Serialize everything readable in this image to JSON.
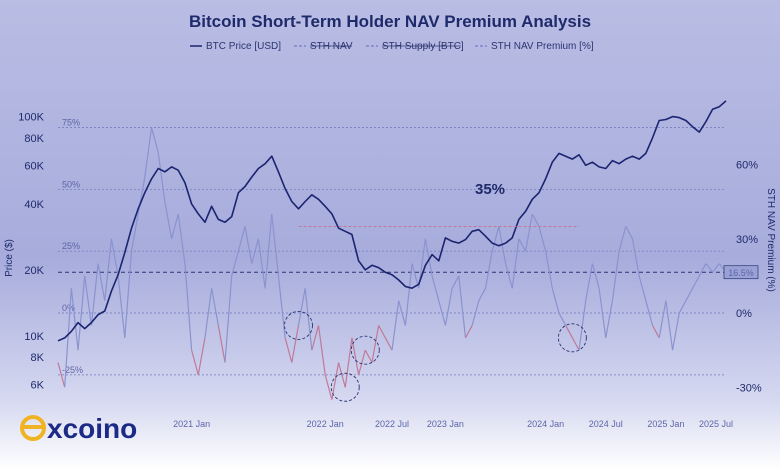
{
  "brand": {
    "name_suffix": "xcoino",
    "logo_letter": "e",
    "accent_color": "#f0b323",
    "text_color": "#1b2a86"
  },
  "chart_data": {
    "type": "line",
    "title": "Bitcoin Short-Term Holder NAV Premium Analysis",
    "legend": {
      "placement": "top-center",
      "entries": [
        "BTC Price [USD]",
        "STH NAV",
        "STH Supply [BTC]",
        "STH NAV Premium [%]"
      ]
    },
    "y_left": {
      "label": "Price ($)",
      "scale": "log",
      "range": [
        4500,
        150000
      ],
      "ticks": [
        6000,
        8000,
        10000,
        20000,
        40000,
        60000,
        80000,
        100000
      ],
      "tick_labels": [
        "6K",
        "8K",
        "10K",
        "20K",
        "40K",
        "60K",
        "80K",
        "100K"
      ]
    },
    "y_right": {
      "label": "STH NAV Premium (%)",
      "range": [
        -40,
        95
      ],
      "ticks": [
        -30,
        0,
        30,
        60
      ],
      "tick_labels": [
        "-30%",
        "0%",
        "30%",
        "60%"
      ]
    },
    "band_labels": [
      "75%",
      "50%",
      "25%",
      "0%",
      "-25%"
    ],
    "x_tick_labels": [
      "2021 Jan",
      "2022 Jan",
      "2022 Jul",
      "2023 Jan",
      "2024 Jan",
      "2024 Jul",
      "2025 Jan",
      "2025 Jul"
    ],
    "current_premium_label": "16.5%",
    "current_premium": 16.5,
    "annotation": "35%",
    "grid": false,
    "series": [
      {
        "name": "BTC Price [USD]",
        "color": "#1b2470",
        "x": [
          0.0,
          0.01,
          0.02,
          0.03,
          0.04,
          0.05,
          0.06,
          0.07,
          0.08,
          0.09,
          0.1,
          0.11,
          0.12,
          0.13,
          0.14,
          0.15,
          0.16,
          0.17,
          0.18,
          0.19,
          0.2,
          0.21,
          0.22,
          0.23,
          0.24,
          0.25,
          0.26,
          0.27,
          0.28,
          0.29,
          0.3,
          0.31,
          0.32,
          0.33,
          0.34,
          0.35,
          0.36,
          0.37,
          0.38,
          0.39,
          0.4,
          0.41,
          0.42,
          0.43,
          0.44,
          0.45,
          0.46,
          0.47,
          0.48,
          0.49,
          0.5,
          0.51,
          0.52,
          0.53,
          0.54,
          0.55,
          0.56,
          0.57,
          0.58,
          0.59,
          0.6,
          0.61,
          0.62,
          0.63,
          0.64,
          0.65,
          0.66,
          0.67,
          0.68,
          0.69,
          0.7,
          0.71,
          0.72,
          0.73,
          0.74,
          0.75,
          0.76,
          0.77,
          0.78,
          0.79,
          0.8,
          0.81,
          0.82,
          0.83,
          0.84,
          0.85,
          0.86,
          0.87,
          0.88,
          0.89,
          0.9,
          0.91,
          0.92,
          0.93,
          0.94,
          0.95,
          0.96,
          0.97,
          0.98,
          0.99,
          1.0
        ],
        "values": [
          9500,
          9800,
          10500,
          11500,
          10800,
          11500,
          12500,
          13000,
          16000,
          19000,
          24000,
          31000,
          38000,
          45000,
          52000,
          58000,
          56000,
          59000,
          57000,
          50000,
          40000,
          36000,
          33000,
          39000,
          34000,
          33000,
          35000,
          45000,
          48000,
          53000,
          58000,
          61000,
          66000,
          56000,
          47000,
          41000,
          38000,
          41000,
          44000,
          42000,
          39000,
          36000,
          31000,
          30000,
          29000,
          22000,
          20000,
          21000,
          20500,
          19500,
          19000,
          18000,
          16800,
          16500,
          17200,
          21000,
          23500,
          22000,
          28000,
          27000,
          26500,
          27500,
          30000,
          30500,
          28500,
          26500,
          25800,
          26500,
          28000,
          34000,
          37000,
          42000,
          45000,
          52000,
          62000,
          68000,
          66000,
          64000,
          67000,
          60000,
          62000,
          59000,
          58000,
          63000,
          61000,
          64000,
          66000,
          64000,
          68000,
          80000,
          96000,
          97000,
          100000,
          99000,
          96000,
          90000,
          85000,
          95000,
          108000,
          111000,
          118000
        ]
      },
      {
        "name": "STH NAV Premium [%]",
        "color": "#7d86c9",
        "x": [
          0.0,
          0.01,
          0.02,
          0.03,
          0.04,
          0.05,
          0.06,
          0.07,
          0.08,
          0.09,
          0.1,
          0.11,
          0.12,
          0.13,
          0.14,
          0.15,
          0.16,
          0.17,
          0.18,
          0.19,
          0.2,
          0.21,
          0.22,
          0.23,
          0.24,
          0.25,
          0.26,
          0.27,
          0.28,
          0.29,
          0.3,
          0.31,
          0.32,
          0.33,
          0.34,
          0.35,
          0.36,
          0.37,
          0.38,
          0.39,
          0.4,
          0.41,
          0.42,
          0.43,
          0.44,
          0.45,
          0.46,
          0.47,
          0.48,
          0.49,
          0.5,
          0.51,
          0.52,
          0.53,
          0.54,
          0.55,
          0.56,
          0.57,
          0.58,
          0.59,
          0.6,
          0.61,
          0.62,
          0.63,
          0.64,
          0.65,
          0.66,
          0.67,
          0.68,
          0.69,
          0.7,
          0.71,
          0.72,
          0.73,
          0.74,
          0.75,
          0.76,
          0.77,
          0.78,
          0.79,
          0.8,
          0.81,
          0.82,
          0.83,
          0.84,
          0.85,
          0.86,
          0.87,
          0.88,
          0.89,
          0.9,
          0.91,
          0.92,
          0.93,
          0.94,
          0.95,
          0.96,
          0.97,
          0.98,
          0.99,
          1.0
        ],
        "values": [
          -20,
          -30,
          10,
          -15,
          15,
          -5,
          20,
          5,
          30,
          15,
          -10,
          25,
          40,
          55,
          75,
          65,
          45,
          30,
          40,
          20,
          -15,
          -25,
          -10,
          10,
          -5,
          -20,
          15,
          25,
          35,
          20,
          30,
          10,
          40,
          15,
          -10,
          -20,
          -5,
          10,
          -15,
          -5,
          -25,
          -35,
          -20,
          -30,
          -10,
          -25,
          -15,
          -20,
          -5,
          -10,
          -15,
          5,
          -5,
          20,
          10,
          30,
          15,
          5,
          -5,
          10,
          15,
          -10,
          -5,
          5,
          10,
          25,
          35,
          20,
          10,
          30,
          25,
          40,
          35,
          25,
          10,
          0,
          -5,
          -10,
          -15,
          5,
          20,
          10,
          -10,
          5,
          25,
          35,
          30,
          15,
          5,
          -5,
          -10,
          5,
          -15,
          0,
          5,
          10,
          15,
          20,
          16.5,
          20,
          16.5
        ]
      }
    ],
    "highlight_peaks_x": [
      0.36,
      0.43,
      0.46,
      0.77
    ],
    "band_colors": {
      "positive": "#8a93cf",
      "negative": "#c07a98"
    }
  }
}
